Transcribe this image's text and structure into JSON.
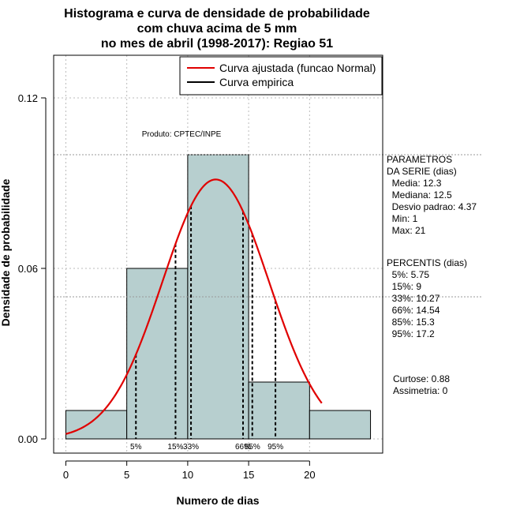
{
  "chart_data": {
    "type": "bar",
    "title_lines": [
      "Histograma e curva de densidade de probabilidade",
      "com chuva acima de 5 mm",
      "no mes de abril (1998-2017): Regiao 51"
    ],
    "xlabel": "Numero de dias",
    "ylabel": "Densidade de probabilidade",
    "xlim": [
      -1,
      26
    ],
    "ylim": [
      -0.005,
      0.135
    ],
    "x_ticks": [
      "0",
      "5",
      "10",
      "15",
      "20"
    ],
    "y_ticks": [
      "0.00",
      "0.06",
      "0.12"
    ],
    "histogram": {
      "bins": [
        [
          0,
          5
        ],
        [
          5,
          10
        ],
        [
          10,
          15
        ],
        [
          15,
          20
        ],
        [
          20,
          25
        ]
      ],
      "density": [
        0.01,
        0.06,
        0.1,
        0.02,
        0.01
      ],
      "fill_color": "#b7cfcf"
    },
    "normal_curve": {
      "mean": 12.3,
      "sd": 4.37,
      "x_range": [
        0,
        21
      ],
      "color": "#e00000",
      "name": "Curva ajustada (funcao Normal)"
    },
    "empirical_name": "Curva empirica",
    "percentiles": [
      {
        "label": "5%",
        "value": 5.75
      },
      {
        "label": "15%",
        "value": 9
      },
      {
        "label": "33%",
        "value": 10.27
      },
      {
        "label": "66%",
        "value": 14.54
      },
      {
        "label": "85%",
        "value": 15.3
      },
      {
        "label": "95%",
        "value": 17.2
      }
    ],
    "percentile_axis_labels": [
      "5%",
      "15%",
      "33%",
      "66%",
      "85%",
      "95%"
    ],
    "dotted_levels": [
      0.1,
      0.05
    ],
    "annotation": "Produto: CPTEC/INPE",
    "legend_position": "top-right"
  },
  "side_panel": {
    "parametros_lines": [
      "PARAMETROS",
      "DA SERIE (dias)",
      "  Media: 12.3",
      "  Mediana: 12.5",
      "  Desvio padrao: 4.37",
      "  Min: 1",
      "  Max: 21"
    ],
    "percentis_lines": [
      "PERCENTIS (dias)",
      "  5%: 5.75",
      "  15%: 9",
      "  33%: 10.27",
      "  66%: 14.54",
      "  85%: 15.3",
      "  95%: 17.2"
    ],
    "stats_lines": [
      "Curtose: 0.88",
      "Assimetria: 0"
    ]
  }
}
